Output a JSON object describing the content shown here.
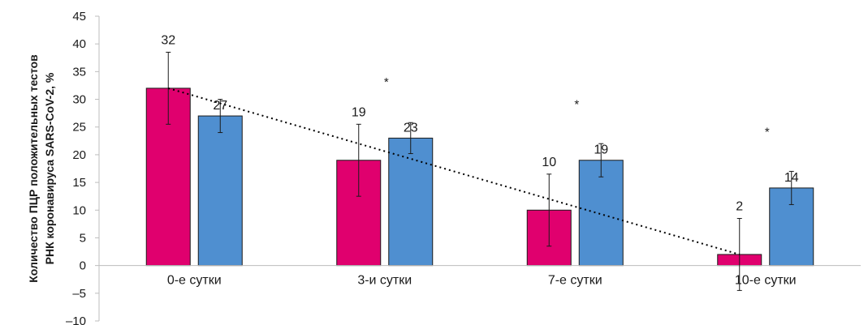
{
  "chart_data": {
    "type": "bar",
    "categories": [
      "0-е сутки",
      "3-и сутки",
      "7-е сутки",
      "10-е сутки"
    ],
    "series": [
      {
        "color": "#e0006e",
        "values": [
          32,
          19,
          10,
          2
        ],
        "error": [
          6.5,
          6.5,
          6.5,
          6.5
        ]
      },
      {
        "color": "#4f8fd0",
        "values": [
          27,
          23,
          19,
          14
        ],
        "error": [
          3,
          2.8,
          3,
          3
        ]
      }
    ],
    "data_labels": [
      [
        "32",
        "19",
        "10",
        "2"
      ],
      [
        "27",
        "23",
        "19",
        "14"
      ]
    ],
    "significance_markers": [
      "",
      "*",
      "*",
      "*"
    ],
    "trendline": {
      "series_index": 0,
      "style": "dotted",
      "color": "#000000"
    },
    "ylabel": [
      "Количество ПЦР положительных тестов",
      "РНК коронавируса SARS-CoV-2, %"
    ],
    "ylim": [
      -10,
      45
    ],
    "yticks": [
      -10,
      -5,
      0,
      5,
      10,
      15,
      20,
      25,
      30,
      35,
      40,
      45
    ],
    "ytick_labels": [
      "–10",
      "–5",
      "0",
      "5",
      "10",
      "15",
      "20",
      "25",
      "30",
      "35",
      "40",
      "45"
    ],
    "grid": false,
    "legend": "none"
  }
}
